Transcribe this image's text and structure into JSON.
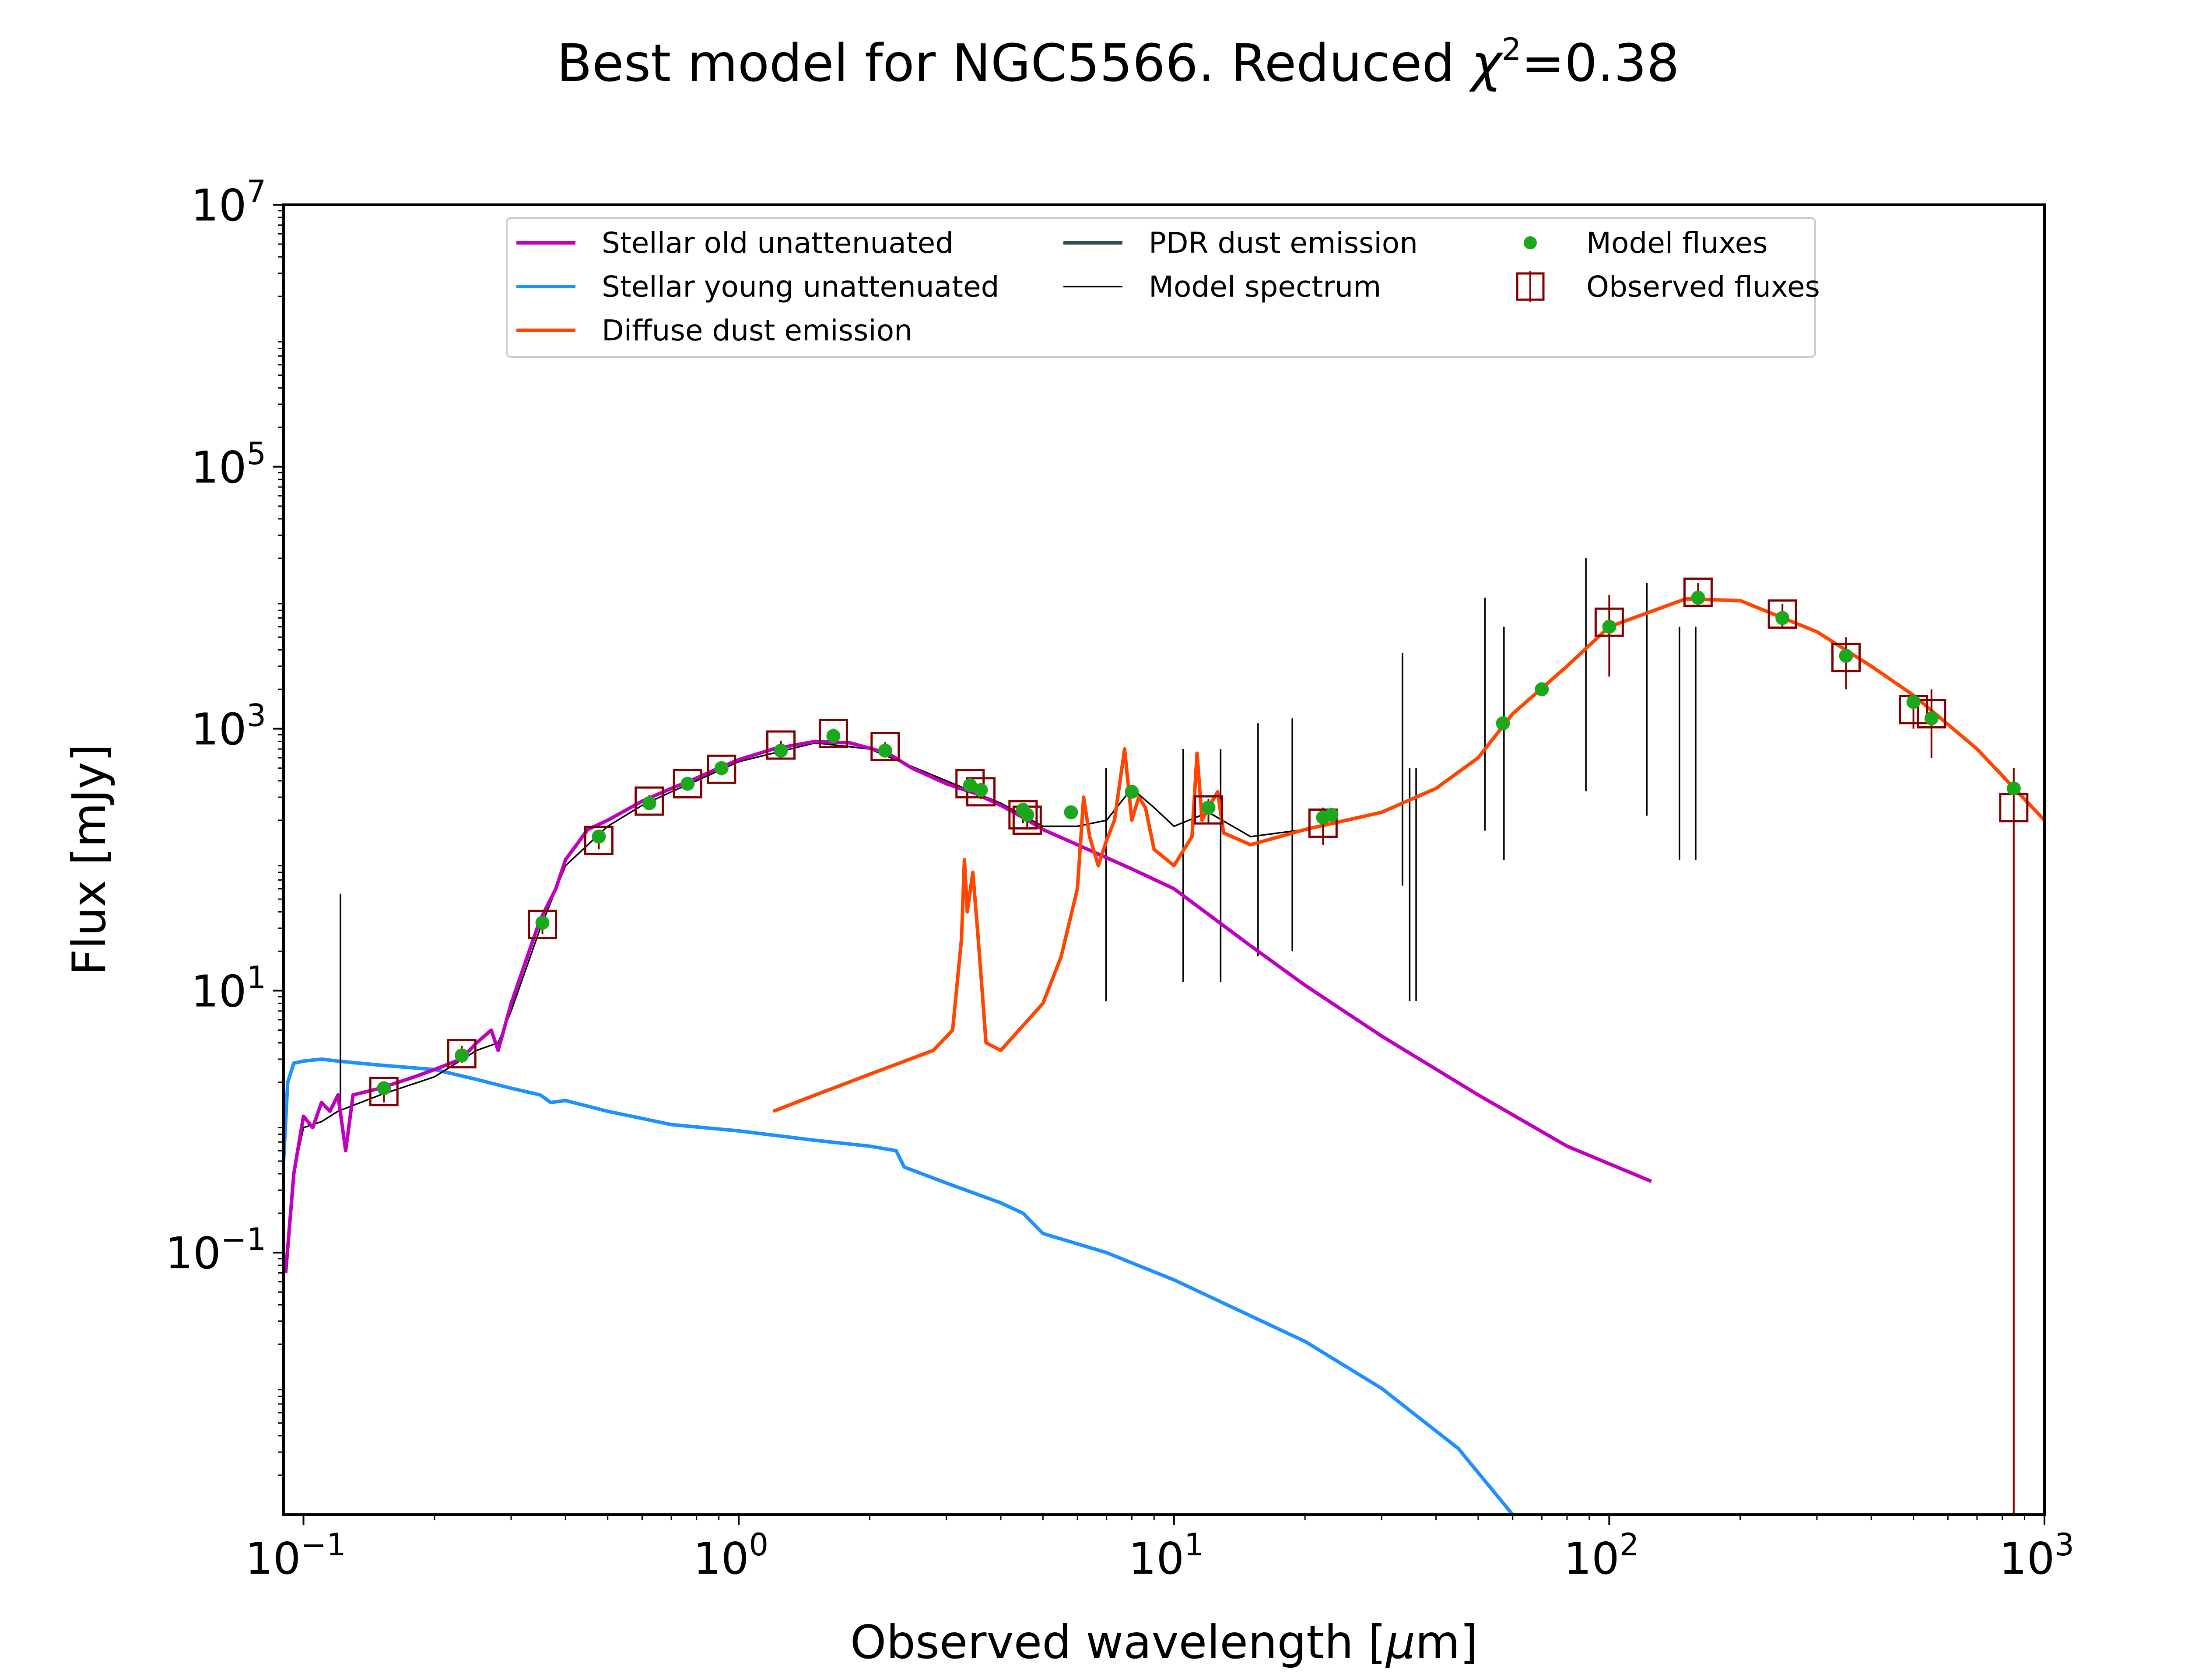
{
  "chart_data": {
    "type": "line",
    "title": {
      "prefix": "Best model for NGC5566. Reduced ",
      "chi": "χ",
      "chi_exp": "2",
      "suffix": "=0.38"
    },
    "xlabel": {
      "before": "Observed wavelength [",
      "mu": "μ",
      "after": "m]"
    },
    "ylabel": "Flux [mJy]",
    "xscale": "log",
    "yscale": "log",
    "xlim": [
      0.09,
      1000
    ],
    "ylim": [
      0.001,
      10000000
    ],
    "x_ticks": [
      {
        "value": 0.1,
        "base": "10",
        "exp": "−1"
      },
      {
        "value": 1,
        "base": "10",
        "exp": "0"
      },
      {
        "value": 10,
        "base": "10",
        "exp": "1"
      },
      {
        "value": 100,
        "base": "10",
        "exp": "2"
      },
      {
        "value": 1000,
        "base": "10",
        "exp": "3"
      }
    ],
    "y_ticks": [
      {
        "value": 0.1,
        "base": "10",
        "exp": "−1"
      },
      {
        "value": 10,
        "base": "10",
        "exp": "1"
      },
      {
        "value": 1000,
        "base": "10",
        "exp": "3"
      },
      {
        "value": 100000,
        "base": "10",
        "exp": "5"
      },
      {
        "value": 10000000,
        "base": "10",
        "exp": "7"
      }
    ],
    "legend_position": "top-center",
    "legend": [
      {
        "label": "Stellar old unattenuated",
        "kind": "line",
        "color": "#bf00bf"
      },
      {
        "label": "Stellar young unattenuated",
        "kind": "line",
        "color": "#1e90ff"
      },
      {
        "label": "Diffuse dust emission",
        "kind": "line",
        "color": "#ff4500"
      },
      {
        "label": "PDR dust emission",
        "kind": "line",
        "color": "#2f4f4f"
      },
      {
        "label": "Model spectrum",
        "kind": "thin-line",
        "color": "#000000"
      },
      {
        "label": "Model fluxes",
        "kind": "dot",
        "color": "#1ca81c"
      },
      {
        "label": "Observed fluxes",
        "kind": "square",
        "color": "#800000"
      }
    ],
    "series": [
      {
        "name": "Stellar old unattenuated",
        "color": "#bf00bf",
        "points": [
          [
            0.091,
            0.07
          ],
          [
            0.095,
            0.4
          ],
          [
            0.1,
            1.1
          ],
          [
            0.105,
            0.9
          ],
          [
            0.11,
            1.4
          ],
          [
            0.115,
            1.2
          ],
          [
            0.12,
            1.6
          ],
          [
            0.125,
            0.6
          ],
          [
            0.13,
            1.6
          ],
          [
            0.15,
            1.8
          ],
          [
            0.18,
            2.2
          ],
          [
            0.2,
            2.5
          ],
          [
            0.23,
            3.0
          ],
          [
            0.25,
            4.0
          ],
          [
            0.27,
            5.0
          ],
          [
            0.28,
            3.5
          ],
          [
            0.3,
            8
          ],
          [
            0.33,
            20
          ],
          [
            0.35,
            35
          ],
          [
            0.38,
            60
          ],
          [
            0.4,
            100
          ],
          [
            0.45,
            170
          ],
          [
            0.5,
            200
          ],
          [
            0.6,
            280
          ],
          [
            0.7,
            350
          ],
          [
            0.8,
            420
          ],
          [
            0.9,
            500
          ],
          [
            1.0,
            580
          ],
          [
            1.2,
            700
          ],
          [
            1.5,
            800
          ],
          [
            1.8,
            780
          ],
          [
            2.2,
            650
          ],
          [
            2.5,
            500
          ],
          [
            3.0,
            380
          ],
          [
            3.5,
            320
          ],
          [
            4.0,
            260
          ],
          [
            4.5,
            210
          ],
          [
            5.0,
            170
          ],
          [
            6.0,
            130
          ],
          [
            8.0,
            85
          ],
          [
            10,
            60
          ],
          [
            15,
            22
          ],
          [
            20,
            11
          ],
          [
            30,
            4.5
          ],
          [
            50,
            1.6
          ],
          [
            80,
            0.65
          ],
          [
            125,
            0.35
          ]
        ]
      },
      {
        "name": "Stellar young unattenuated",
        "color": "#1e90ff",
        "points": [
          [
            0.09,
            0.5
          ],
          [
            0.092,
            2.0
          ],
          [
            0.095,
            2.8
          ],
          [
            0.1,
            2.9
          ],
          [
            0.11,
            3.0
          ],
          [
            0.12,
            2.9
          ],
          [
            0.15,
            2.7
          ],
          [
            0.2,
            2.5
          ],
          [
            0.25,
            2.1
          ],
          [
            0.3,
            1.8
          ],
          [
            0.35,
            1.6
          ],
          [
            0.37,
            1.4
          ],
          [
            0.4,
            1.45
          ],
          [
            0.5,
            1.2
          ],
          [
            0.7,
            0.95
          ],
          [
            1.0,
            0.85
          ],
          [
            1.5,
            0.72
          ],
          [
            2.0,
            0.65
          ],
          [
            2.3,
            0.6
          ],
          [
            2.4,
            0.45
          ],
          [
            3.0,
            0.34
          ],
          [
            4.0,
            0.24
          ],
          [
            4.5,
            0.2
          ],
          [
            5.0,
            0.14
          ],
          [
            7.0,
            0.1
          ],
          [
            10,
            0.062
          ],
          [
            20,
            0.021
          ],
          [
            30,
            0.0092
          ],
          [
            45,
            0.0032
          ],
          [
            60,
            0.001
          ]
        ]
      },
      {
        "name": "Diffuse dust emission",
        "color": "#ff4500",
        "points": [
          [
            1.2,
            1.2
          ],
          [
            1.5,
            1.6
          ],
          [
            2.0,
            2.3
          ],
          [
            2.8,
            3.5
          ],
          [
            3.1,
            5.0
          ],
          [
            3.25,
            25
          ],
          [
            3.3,
            100
          ],
          [
            3.35,
            40
          ],
          [
            3.45,
            80
          ],
          [
            3.55,
            25
          ],
          [
            3.7,
            4.0
          ],
          [
            4.0,
            3.5
          ],
          [
            5.0,
            8
          ],
          [
            5.5,
            18
          ],
          [
            6.0,
            60
          ],
          [
            6.2,
            300
          ],
          [
            6.4,
            150
          ],
          [
            6.7,
            90
          ],
          [
            7.0,
            140
          ],
          [
            7.3,
            200
          ],
          [
            7.7,
            700
          ],
          [
            8.0,
            200
          ],
          [
            8.3,
            300
          ],
          [
            8.6,
            250
          ],
          [
            9.0,
            120
          ],
          [
            10,
            90
          ],
          [
            11.0,
            150
          ],
          [
            11.3,
            650
          ],
          [
            11.6,
            200
          ],
          [
            12.0,
            250
          ],
          [
            12.6,
            330
          ],
          [
            13,
            160
          ],
          [
            15,
            130
          ],
          [
            20,
            170
          ],
          [
            30,
            230
          ],
          [
            40,
            350
          ],
          [
            50,
            600
          ],
          [
            60,
            1300
          ],
          [
            80,
            3000
          ],
          [
            100,
            6000
          ],
          [
            150,
            9800
          ],
          [
            200,
            9500
          ],
          [
            300,
            5500
          ],
          [
            400,
            3000
          ],
          [
            500,
            1800
          ],
          [
            700,
            700
          ],
          [
            1000,
            200
          ]
        ]
      },
      {
        "name": "Model spectrum",
        "color": "#000000",
        "points": [
          [
            0.095,
            0.4
          ],
          [
            0.1,
            0.9
          ],
          [
            0.11,
            1.0
          ],
          [
            0.12,
            1.2
          ],
          [
            0.15,
            1.6
          ],
          [
            0.2,
            2.2
          ],
          [
            0.25,
            3.5
          ],
          [
            0.28,
            4.0
          ],
          [
            0.3,
            7
          ],
          [
            0.35,
            30
          ],
          [
            0.4,
            90
          ],
          [
            0.5,
            180
          ],
          [
            0.6,
            260
          ],
          [
            0.7,
            330
          ],
          [
            0.8,
            400
          ],
          [
            1.0,
            560
          ],
          [
            1.5,
            780
          ],
          [
            2.0,
            700
          ],
          [
            3.0,
            400
          ],
          [
            4.0,
            270
          ],
          [
            5.0,
            180
          ],
          [
            6.0,
            180
          ],
          [
            7.0,
            200
          ],
          [
            8.0,
            350
          ],
          [
            9.0,
            250
          ],
          [
            10,
            180
          ],
          [
            12,
            230
          ],
          [
            15,
            150
          ],
          [
            20,
            170
          ],
          [
            30,
            230
          ],
          [
            40,
            350
          ],
          [
            50,
            600
          ],
          [
            60,
            1300
          ],
          [
            80,
            3000
          ],
          [
            100,
            6000
          ],
          [
            150,
            9800
          ],
          [
            200,
            9500
          ],
          [
            300,
            5500
          ],
          [
            400,
            3000
          ],
          [
            500,
            1800
          ],
          [
            700,
            700
          ],
          [
            1000,
            200
          ]
        ]
      }
    ],
    "model_spectrum_emission_lines": [
      [
        0.1216,
        55
      ],
      [
        6.98,
        500
      ],
      [
        10.5,
        700
      ],
      [
        12.8,
        700
      ],
      [
        15.6,
        1100
      ],
      [
        18.7,
        1200
      ],
      [
        33.5,
        3800
      ],
      [
        34.8,
        500
      ],
      [
        36.0,
        500
      ],
      [
        51.8,
        10000
      ],
      [
        57.3,
        6000
      ],
      [
        88.4,
        20000
      ],
      [
        122,
        13000
      ],
      [
        145,
        6000
      ],
      [
        158,
        6000
      ]
    ],
    "model_fluxes": [
      [
        0.153,
        1.8
      ],
      [
        0.231,
        3.2
      ],
      [
        0.354,
        33
      ],
      [
        0.477,
        150
      ],
      [
        0.623,
        270
      ],
      [
        0.763,
        380
      ],
      [
        0.913,
        500
      ],
      [
        1.25,
        680
      ],
      [
        1.65,
        880
      ],
      [
        2.17,
        680
      ],
      [
        3.4,
        370
      ],
      [
        3.6,
        340
      ],
      [
        4.5,
        240
      ],
      [
        4.6,
        220
      ],
      [
        5.8,
        230
      ],
      [
        8.0,
        330
      ],
      [
        12,
        250
      ],
      [
        22,
        210
      ],
      [
        23,
        220
      ],
      [
        57,
        1100
      ],
      [
        70,
        2000
      ],
      [
        100,
        6000
      ],
      [
        160,
        10000
      ],
      [
        250,
        7000
      ],
      [
        350,
        3600
      ],
      [
        500,
        1600
      ],
      [
        550,
        1200
      ],
      [
        850,
        350
      ]
    ],
    "observed_fluxes": [
      {
        "x": 0.153,
        "y": 1.7,
        "err": [
          0.3,
          0.3
        ]
      },
      {
        "x": 0.231,
        "y": 3.3,
        "err": [
          0.5,
          0.5
        ]
      },
      {
        "x": 0.354,
        "y": 32,
        "err": [
          5,
          5
        ]
      },
      {
        "x": 0.477,
        "y": 140,
        "err": [
          20,
          20
        ]
      },
      {
        "x": 0.623,
        "y": 280,
        "err": [
          30,
          30
        ]
      },
      {
        "x": 0.763,
        "y": 380,
        "err": [
          40,
          40
        ]
      },
      {
        "x": 0.913,
        "y": 490,
        "err": [
          50,
          50
        ]
      },
      {
        "x": 1.25,
        "y": 750,
        "err": [
          60,
          60
        ]
      },
      {
        "x": 1.65,
        "y": 920,
        "err": [
          80,
          80
        ]
      },
      {
        "x": 2.17,
        "y": 730,
        "err": [
          60,
          60
        ]
      },
      {
        "x": 3.4,
        "y": 380,
        "err": [
          40,
          40
        ]
      },
      {
        "x": 3.6,
        "y": 330,
        "err": [
          40,
          40
        ]
      },
      {
        "x": 4.5,
        "y": 220,
        "err": [
          30,
          30
        ]
      },
      {
        "x": 4.6,
        "y": 200,
        "err": [
          30,
          30
        ]
      },
      {
        "x": 12,
        "y": 240,
        "err": [
          50,
          50
        ]
      },
      {
        "x": 22,
        "y": 190,
        "err": [
          60,
          60
        ]
      },
      {
        "x": 100,
        "y": 6500,
        "err": [
          4000,
          4000
        ]
      },
      {
        "x": 160,
        "y": 11000,
        "err": [
          2000,
          2000
        ]
      },
      {
        "x": 250,
        "y": 7500,
        "err": [
          1500,
          1500
        ]
      },
      {
        "x": 350,
        "y": 3500,
        "err": [
          1500,
          1500
        ]
      },
      {
        "x": 500,
        "y": 1400,
        "err": [
          400,
          400
        ]
      },
      {
        "x": 550,
        "y": 1300,
        "err": [
          700,
          700
        ]
      },
      {
        "x": 850,
        "y": 250,
        "err": [
          249.999,
          250
        ]
      }
    ]
  }
}
